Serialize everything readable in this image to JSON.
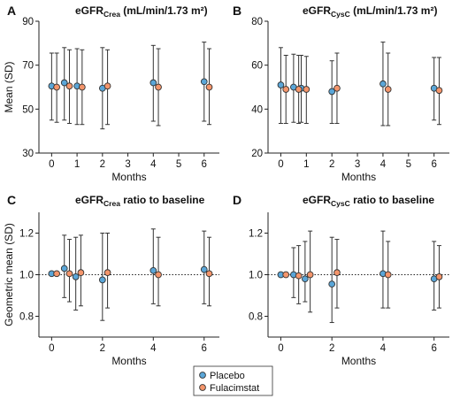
{
  "colors": {
    "placebo": "#5aa6d8",
    "fulacimstat": "#f4956b",
    "marker_edge": "#333333",
    "axis": "#222222"
  },
  "legend": {
    "placebo": "Placebo",
    "fulacimstat": "Fulacimstat",
    "position": "bottom-center"
  },
  "chart_data": [
    {
      "panel": "A",
      "type": "scatter",
      "title": {
        "main": "eGFR",
        "sub": "Crea",
        "rest": " (mL/min/1.73 m²)"
      },
      "xlabel": "Months",
      "ylabel": "Mean (SD)",
      "xlim": [
        -0.5,
        6.6
      ],
      "ylim": [
        30,
        90
      ],
      "xticks": [
        0,
        1,
        2,
        3,
        4,
        5,
        6
      ],
      "yticks": [
        30,
        50,
        70,
        90
      ],
      "series": [
        {
          "name": "Placebo",
          "points": [
            {
              "x": 0,
              "y": 60.5,
              "lo": 45,
              "hi": 75.5
            },
            {
              "x": 0.5,
              "y": 62,
              "lo": 45,
              "hi": 78
            },
            {
              "x": 1,
              "y": 60.5,
              "lo": 43,
              "hi": 77.5
            },
            {
              "x": 2,
              "y": 59.5,
              "lo": 41,
              "hi": 78
            },
            {
              "x": 4,
              "y": 62,
              "lo": 44.5,
              "hi": 79
            },
            {
              "x": 6,
              "y": 62.5,
              "lo": 44.5,
              "hi": 80.5
            }
          ]
        },
        {
          "name": "Fulacimstat",
          "points": [
            {
              "x": 0.2,
              "y": 60,
              "lo": 44,
              "hi": 75.5
            },
            {
              "x": 0.7,
              "y": 60.5,
              "lo": 43.5,
              "hi": 77
            },
            {
              "x": 1.2,
              "y": 60,
              "lo": 43,
              "hi": 77
            },
            {
              "x": 2.2,
              "y": 60.5,
              "lo": 43,
              "hi": 77
            },
            {
              "x": 4.2,
              "y": 60,
              "lo": 42.5,
              "hi": 77.5
            },
            {
              "x": 6.2,
              "y": 60,
              "lo": 43,
              "hi": 77.5
            }
          ]
        }
      ]
    },
    {
      "panel": "B",
      "type": "scatter",
      "title": {
        "main": "eGFR",
        "sub": "CysC",
        "rest": " (mL/min/1.73 m²)"
      },
      "xlabel": "Months",
      "ylabel": "",
      "xlim": [
        -0.5,
        6.6
      ],
      "ylim": [
        20,
        80
      ],
      "xticks": [
        0,
        1,
        2,
        3,
        4,
        5,
        6
      ],
      "yticks": [
        20,
        40,
        60,
        80
      ],
      "series": [
        {
          "name": "Placebo",
          "points": [
            {
              "x": 0,
              "y": 51,
              "lo": 33.5,
              "hi": 68
            },
            {
              "x": 0.5,
              "y": 50,
              "lo": 34,
              "hi": 65
            },
            {
              "x": 0.8,
              "y": 49.5,
              "lo": 34,
              "hi": 64.5
            },
            {
              "x": 2,
              "y": 48,
              "lo": 33.5,
              "hi": 62
            },
            {
              "x": 4,
              "y": 51.5,
              "lo": 32.5,
              "hi": 70.5
            },
            {
              "x": 6,
              "y": 49.5,
              "lo": 35,
              "hi": 63.5
            }
          ]
        },
        {
          "name": "Fulacimstat",
          "points": [
            {
              "x": 0.2,
              "y": 49,
              "lo": 33.5,
              "hi": 64.5
            },
            {
              "x": 0.7,
              "y": 49,
              "lo": 33.5,
              "hi": 64.5
            },
            {
              "x": 1,
              "y": 49,
              "lo": 33.5,
              "hi": 64
            },
            {
              "x": 2.2,
              "y": 49.5,
              "lo": 33.5,
              "hi": 65.5
            },
            {
              "x": 4.2,
              "y": 49,
              "lo": 32.5,
              "hi": 65.5
            },
            {
              "x": 6.2,
              "y": 48.5,
              "lo": 33,
              "hi": 63.5
            }
          ]
        }
      ]
    },
    {
      "panel": "C",
      "type": "scatter",
      "title": {
        "main": "eGFR",
        "sub": "Crea",
        "rest": " ratio to baseline"
      },
      "xlabel": "Months",
      "ylabel": "Geometric mean (SD)",
      "xlim": [
        -0.5,
        6.6
      ],
      "ylim": [
        0.7,
        1.3
      ],
      "xticks": [
        0,
        2,
        4,
        6
      ],
      "yticks": [
        0.8,
        1.0,
        1.2
      ],
      "yticklabels": [
        "0.8",
        "1.0",
        "1.2"
      ],
      "reference_line": 1.0,
      "series": [
        {
          "name": "Placebo",
          "points": [
            {
              "x": 0,
              "y": 1.005,
              "lo": 1.005,
              "hi": 1.005
            },
            {
              "x": 0.5,
              "y": 1.03,
              "lo": 0.89,
              "hi": 1.19
            },
            {
              "x": 0.95,
              "y": 0.99,
              "lo": 0.83,
              "hi": 1.18
            },
            {
              "x": 2,
              "y": 0.975,
              "lo": 0.78,
              "hi": 1.2
            },
            {
              "x": 4,
              "y": 1.02,
              "lo": 0.86,
              "hi": 1.22
            },
            {
              "x": 6,
              "y": 1.025,
              "lo": 0.86,
              "hi": 1.21
            }
          ]
        },
        {
          "name": "Fulacimstat",
          "points": [
            {
              "x": 0.2,
              "y": 1.005,
              "lo": 1.005,
              "hi": 1.005
            },
            {
              "x": 0.7,
              "y": 1.005,
              "lo": 0.87,
              "hi": 1.17
            },
            {
              "x": 1.15,
              "y": 1.01,
              "lo": 0.85,
              "hi": 1.19
            },
            {
              "x": 2.2,
              "y": 1.01,
              "lo": 0.84,
              "hi": 1.2
            },
            {
              "x": 4.2,
              "y": 1.0,
              "lo": 0.85,
              "hi": 1.18
            },
            {
              "x": 6.2,
              "y": 1.005,
              "lo": 0.85,
              "hi": 1.18
            }
          ]
        }
      ]
    },
    {
      "panel": "D",
      "type": "scatter",
      "title": {
        "main": "eGFR",
        "sub": "CysC",
        "rest": " ratio to baseline"
      },
      "xlabel": "Months",
      "ylabel": "",
      "xlim": [
        -0.5,
        6.6
      ],
      "ylim": [
        0.7,
        1.3
      ],
      "xticks": [
        0,
        2,
        4,
        6
      ],
      "yticks": [
        0.8,
        1.0,
        1.2
      ],
      "yticklabels": [
        "0.8",
        "1.0",
        "1.2"
      ],
      "reference_line": 1.0,
      "series": [
        {
          "name": "Placebo",
          "points": [
            {
              "x": 0,
              "y": 1.0,
              "lo": 1.0,
              "hi": 1.0
            },
            {
              "x": 0.5,
              "y": 1.0,
              "lo": 0.89,
              "hi": 1.13
            },
            {
              "x": 0.95,
              "y": 0.98,
              "lo": 0.87,
              "hi": 1.16
            },
            {
              "x": 2,
              "y": 0.955,
              "lo": 0.77,
              "hi": 1.18
            },
            {
              "x": 4,
              "y": 1.005,
              "lo": 0.84,
              "hi": 1.21
            },
            {
              "x": 6,
              "y": 0.98,
              "lo": 0.83,
              "hi": 1.16
            }
          ]
        },
        {
          "name": "Fulacimstat",
          "points": [
            {
              "x": 0.2,
              "y": 1.0,
              "lo": 1.0,
              "hi": 1.0
            },
            {
              "x": 0.7,
              "y": 0.995,
              "lo": 0.86,
              "hi": 1.14
            },
            {
              "x": 1.15,
              "y": 1.0,
              "lo": 0.82,
              "hi": 1.21
            },
            {
              "x": 2.2,
              "y": 1.01,
              "lo": 0.84,
              "hi": 1.17
            },
            {
              "x": 4.2,
              "y": 1.0,
              "lo": 0.84,
              "hi": 1.16
            },
            {
              "x": 6.2,
              "y": 0.99,
              "lo": 0.84,
              "hi": 1.14
            }
          ]
        }
      ]
    }
  ]
}
